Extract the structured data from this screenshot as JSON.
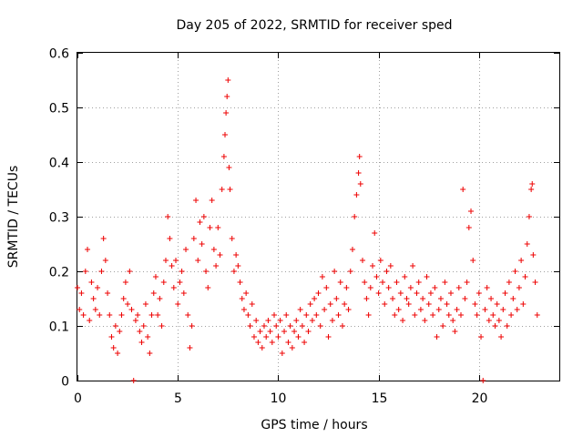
{
  "chart_data": {
    "type": "scatter",
    "title": "Day 205 of 2022, SRMTID for receiver sped",
    "xlabel": "GPS time / hours",
    "ylabel": "SRMTID / TECUs",
    "xlim": [
      0,
      24
    ],
    "ylim": [
      0,
      0.6
    ],
    "xticks": [
      0,
      5,
      10,
      15,
      20
    ],
    "xtick_labels": [
      "0",
      "5",
      "10",
      "15",
      "20"
    ],
    "yticks": [
      0,
      0.1,
      0.2,
      0.3,
      0.4,
      0.5,
      0.6
    ],
    "ytick_labels": [
      "0",
      "0.1",
      "0.2",
      "0.3",
      "0.4",
      "0.5",
      "0.6"
    ],
    "grid": true,
    "marker": "+",
    "series_color": "#ee0000",
    "series": [
      {
        "name": "SRMTID",
        "points": [
          [
            0.0,
            0.17
          ],
          [
            0.1,
            0.13
          ],
          [
            0.2,
            0.16
          ],
          [
            0.3,
            0.12
          ],
          [
            0.4,
            0.2
          ],
          [
            0.5,
            0.24
          ],
          [
            0.6,
            0.11
          ],
          [
            0.7,
            0.18
          ],
          [
            0.8,
            0.15
          ],
          [
            0.9,
            0.13
          ],
          [
            1.0,
            0.17
          ],
          [
            1.1,
            0.12
          ],
          [
            1.2,
            0.2
          ],
          [
            1.3,
            0.26
          ],
          [
            1.4,
            0.22
          ],
          [
            1.5,
            0.16
          ],
          [
            1.6,
            0.12
          ],
          [
            1.7,
            0.08
          ],
          [
            1.8,
            0.06
          ],
          [
            1.9,
            0.1
          ],
          [
            2.0,
            0.05
          ],
          [
            2.1,
            0.09
          ],
          [
            2.2,
            0.12
          ],
          [
            2.3,
            0.15
          ],
          [
            2.4,
            0.18
          ],
          [
            2.5,
            0.14
          ],
          [
            2.6,
            0.2
          ],
          [
            2.7,
            0.13
          ],
          [
            2.8,
            0.0
          ],
          [
            2.9,
            0.11
          ],
          [
            3.0,
            0.12
          ],
          [
            3.1,
            0.09
          ],
          [
            3.2,
            0.07
          ],
          [
            3.3,
            0.1
          ],
          [
            3.4,
            0.14
          ],
          [
            3.5,
            0.08
          ],
          [
            3.6,
            0.05
          ],
          [
            3.7,
            0.12
          ],
          [
            3.8,
            0.16
          ],
          [
            3.9,
            0.19
          ],
          [
            4.0,
            0.12
          ],
          [
            4.1,
            0.15
          ],
          [
            4.2,
            0.1
          ],
          [
            4.3,
            0.18
          ],
          [
            4.4,
            0.22
          ],
          [
            4.5,
            0.3
          ],
          [
            4.6,
            0.26
          ],
          [
            4.7,
            0.21
          ],
          [
            4.8,
            0.17
          ],
          [
            4.9,
            0.22
          ],
          [
            5.0,
            0.14
          ],
          [
            5.1,
            0.18
          ],
          [
            5.2,
            0.2
          ],
          [
            5.3,
            0.16
          ],
          [
            5.4,
            0.24
          ],
          [
            5.5,
            0.12
          ],
          [
            5.6,
            0.06
          ],
          [
            5.7,
            0.1
          ],
          [
            5.8,
            0.26
          ],
          [
            5.9,
            0.33
          ],
          [
            6.0,
            0.22
          ],
          [
            6.1,
            0.29
          ],
          [
            6.2,
            0.25
          ],
          [
            6.3,
            0.3
          ],
          [
            6.4,
            0.2
          ],
          [
            6.5,
            0.17
          ],
          [
            6.6,
            0.28
          ],
          [
            6.7,
            0.33
          ],
          [
            6.8,
            0.24
          ],
          [
            6.9,
            0.21
          ],
          [
            7.0,
            0.28
          ],
          [
            7.1,
            0.23
          ],
          [
            7.2,
            0.35
          ],
          [
            7.3,
            0.41
          ],
          [
            7.35,
            0.45
          ],
          [
            7.4,
            0.49
          ],
          [
            7.45,
            0.52
          ],
          [
            7.5,
            0.55
          ],
          [
            7.55,
            0.39
          ],
          [
            7.6,
            0.35
          ],
          [
            7.7,
            0.26
          ],
          [
            7.8,
            0.2
          ],
          [
            7.9,
            0.23
          ],
          [
            8.0,
            0.21
          ],
          [
            8.1,
            0.18
          ],
          [
            8.2,
            0.15
          ],
          [
            8.3,
            0.13
          ],
          [
            8.4,
            0.16
          ],
          [
            8.5,
            0.12
          ],
          [
            8.6,
            0.1
          ],
          [
            8.7,
            0.14
          ],
          [
            8.8,
            0.08
          ],
          [
            8.9,
            0.11
          ],
          [
            9.0,
            0.07
          ],
          [
            9.1,
            0.09
          ],
          [
            9.2,
            0.06
          ],
          [
            9.3,
            0.1
          ],
          [
            9.4,
            0.08
          ],
          [
            9.5,
            0.11
          ],
          [
            9.6,
            0.09
          ],
          [
            9.7,
            0.07
          ],
          [
            9.8,
            0.12
          ],
          [
            9.9,
            0.1
          ],
          [
            10.0,
            0.08
          ],
          [
            10.1,
            0.11
          ],
          [
            10.2,
            0.05
          ],
          [
            10.3,
            0.09
          ],
          [
            10.4,
            0.12
          ],
          [
            10.5,
            0.07
          ],
          [
            10.6,
            0.1
          ],
          [
            10.7,
            0.06
          ],
          [
            10.8,
            0.09
          ],
          [
            10.9,
            0.11
          ],
          [
            11.0,
            0.08
          ],
          [
            11.1,
            0.13
          ],
          [
            11.2,
            0.1
          ],
          [
            11.3,
            0.07
          ],
          [
            11.4,
            0.12
          ],
          [
            11.5,
            0.09
          ],
          [
            11.6,
            0.14
          ],
          [
            11.7,
            0.11
          ],
          [
            11.8,
            0.15
          ],
          [
            11.9,
            0.12
          ],
          [
            12.0,
            0.16
          ],
          [
            12.1,
            0.1
          ],
          [
            12.2,
            0.19
          ],
          [
            12.3,
            0.13
          ],
          [
            12.4,
            0.17
          ],
          [
            12.5,
            0.08
          ],
          [
            12.6,
            0.14
          ],
          [
            12.7,
            0.11
          ],
          [
            12.8,
            0.2
          ],
          [
            12.9,
            0.15
          ],
          [
            13.0,
            0.12
          ],
          [
            13.1,
            0.18
          ],
          [
            13.2,
            0.1
          ],
          [
            13.3,
            0.14
          ],
          [
            13.4,
            0.17
          ],
          [
            13.5,
            0.13
          ],
          [
            13.6,
            0.2
          ],
          [
            13.7,
            0.24
          ],
          [
            13.8,
            0.3
          ],
          [
            13.9,
            0.34
          ],
          [
            14.0,
            0.38
          ],
          [
            14.05,
            0.41
          ],
          [
            14.1,
            0.36
          ],
          [
            14.2,
            0.22
          ],
          [
            14.3,
            0.18
          ],
          [
            14.4,
            0.15
          ],
          [
            14.5,
            0.12
          ],
          [
            14.6,
            0.17
          ],
          [
            14.7,
            0.21
          ],
          [
            14.8,
            0.27
          ],
          [
            14.9,
            0.19
          ],
          [
            15.0,
            0.16
          ],
          [
            15.1,
            0.22
          ],
          [
            15.2,
            0.18
          ],
          [
            15.3,
            0.14
          ],
          [
            15.4,
            0.2
          ],
          [
            15.5,
            0.17
          ],
          [
            15.6,
            0.21
          ],
          [
            15.7,
            0.15
          ],
          [
            15.8,
            0.12
          ],
          [
            15.9,
            0.18
          ],
          [
            16.0,
            0.13
          ],
          [
            16.1,
            0.16
          ],
          [
            16.2,
            0.11
          ],
          [
            16.3,
            0.19
          ],
          [
            16.4,
            0.15
          ],
          [
            16.5,
            0.14
          ],
          [
            16.6,
            0.17
          ],
          [
            16.7,
            0.21
          ],
          [
            16.8,
            0.12
          ],
          [
            16.9,
            0.16
          ],
          [
            17.0,
            0.18
          ],
          [
            17.1,
            0.13
          ],
          [
            17.2,
            0.15
          ],
          [
            17.3,
            0.11
          ],
          [
            17.4,
            0.19
          ],
          [
            17.5,
            0.14
          ],
          [
            17.6,
            0.16
          ],
          [
            17.7,
            0.12
          ],
          [
            17.8,
            0.17
          ],
          [
            17.9,
            0.08
          ],
          [
            18.0,
            0.13
          ],
          [
            18.1,
            0.15
          ],
          [
            18.2,
            0.1
          ],
          [
            18.3,
            0.18
          ],
          [
            18.4,
            0.14
          ],
          [
            18.5,
            0.12
          ],
          [
            18.6,
            0.16
          ],
          [
            18.7,
            0.11
          ],
          [
            18.8,
            0.09
          ],
          [
            18.9,
            0.13
          ],
          [
            19.0,
            0.17
          ],
          [
            19.1,
            0.12
          ],
          [
            19.2,
            0.35
          ],
          [
            19.3,
            0.15
          ],
          [
            19.4,
            0.18
          ],
          [
            19.5,
            0.28
          ],
          [
            19.6,
            0.31
          ],
          [
            19.7,
            0.22
          ],
          [
            19.8,
            0.14
          ],
          [
            19.9,
            0.12
          ],
          [
            20.0,
            0.16
          ],
          [
            20.1,
            0.08
          ],
          [
            20.2,
            0.0
          ],
          [
            20.3,
            0.13
          ],
          [
            20.4,
            0.17
          ],
          [
            20.5,
            0.11
          ],
          [
            20.6,
            0.15
          ],
          [
            20.7,
            0.12
          ],
          [
            20.8,
            0.1
          ],
          [
            20.9,
            0.14
          ],
          [
            21.0,
            0.11
          ],
          [
            21.1,
            0.08
          ],
          [
            21.2,
            0.13
          ],
          [
            21.3,
            0.16
          ],
          [
            21.4,
            0.1
          ],
          [
            21.5,
            0.18
          ],
          [
            21.6,
            0.12
          ],
          [
            21.7,
            0.15
          ],
          [
            21.8,
            0.2
          ],
          [
            21.9,
            0.13
          ],
          [
            22.0,
            0.17
          ],
          [
            22.1,
            0.22
          ],
          [
            22.2,
            0.14
          ],
          [
            22.3,
            0.19
          ],
          [
            22.4,
            0.25
          ],
          [
            22.5,
            0.3
          ],
          [
            22.6,
            0.35
          ],
          [
            22.65,
            0.36
          ],
          [
            22.7,
            0.23
          ],
          [
            22.8,
            0.18
          ],
          [
            22.9,
            0.12
          ]
        ]
      }
    ]
  }
}
